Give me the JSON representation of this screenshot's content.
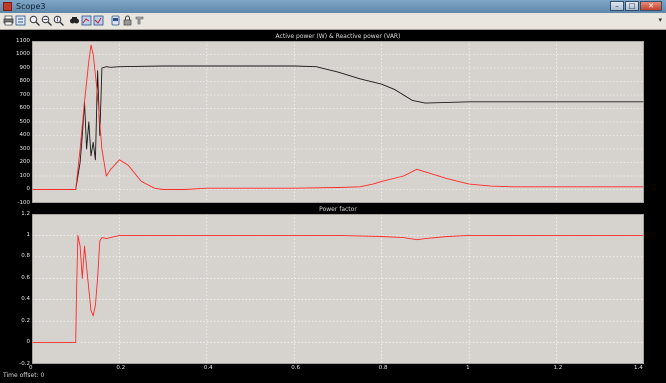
{
  "window": {
    "title": "Scope3",
    "minimize_glyph": "–",
    "maximize_glyph": "□",
    "close_glyph": "✕"
  },
  "toolbar": {
    "icons": [
      "print-icon",
      "parameters-icon",
      "zoom-in-icon",
      "zoom-x-icon",
      "zoom-y-icon",
      "autoscale-icon",
      "save-axes-icon",
      "restore-axes-icon",
      "floating-scope-icon",
      "lock-axes-icon",
      "signal-selector-icon"
    ]
  },
  "status": {
    "text": "Time offset:  0"
  },
  "colors": {
    "background": "#d6d3ce",
    "grid": "#ffffff",
    "active": "#1a1a1a",
    "reactive": "#ff2a2a"
  },
  "chart_data": [
    {
      "type": "line",
      "title": "Active power (W) & Reactive power (VAR)",
      "ylim": [
        -100,
        1100
      ],
      "xlim": [
        0,
        1.4
      ],
      "yticks": [
        "1100",
        "1000",
        "900",
        "800",
        "700",
        "600",
        "500",
        "400",
        "300",
        "200",
        "100",
        "0",
        "-100"
      ],
      "xticks": [],
      "grid": true,
      "series": [
        {
          "color": "#1a1a1a",
          "x": [
            0,
            0.1,
            0.11,
            0.115,
            0.12,
            0.125,
            0.13,
            0.135,
            0.14,
            0.145,
            0.15,
            0.155,
            0.16,
            0.17,
            0.18,
            0.2,
            0.3,
            0.5,
            0.6,
            0.65,
            0.7,
            0.75,
            0.8,
            0.83,
            0.85,
            0.87,
            0.9,
            0.95,
            1.0,
            1.1,
            1.4
          ],
          "y": [
            0,
            0,
            200,
            400,
            650,
            300,
            500,
            250,
            350,
            220,
            880,
            400,
            900,
            910,
            905,
            910,
            915,
            915,
            915,
            910,
            870,
            820,
            780,
            740,
            700,
            660,
            640,
            645,
            650,
            650,
            650
          ]
        },
        {
          "color": "#ff2a2a",
          "x": [
            0,
            0.1,
            0.11,
            0.12,
            0.13,
            0.135,
            0.14,
            0.15,
            0.16,
            0.17,
            0.18,
            0.2,
            0.22,
            0.25,
            0.28,
            0.3,
            0.35,
            0.4,
            0.5,
            0.6,
            0.7,
            0.75,
            0.78,
            0.8,
            0.85,
            0.88,
            0.9,
            0.95,
            1.0,
            1.05,
            1.1,
            1.2,
            1.4
          ],
          "y": [
            0,
            0,
            300,
            650,
            950,
            1070,
            1000,
            700,
            300,
            100,
            150,
            220,
            180,
            60,
            10,
            0,
            0,
            10,
            10,
            10,
            15,
            20,
            40,
            60,
            100,
            150,
            130,
            80,
            40,
            25,
            20,
            20,
            20
          ]
        }
      ]
    },
    {
      "type": "line",
      "title": "Power factor",
      "ylim": [
        -0.2,
        1.2
      ],
      "xlim": [
        0,
        1.4
      ],
      "yticks": [
        "1.2",
        "1",
        "0.8",
        "0.6",
        "0.4",
        "0.2",
        "0",
        "-0.2"
      ],
      "xticks": [
        "0",
        "0.2",
        "0.4",
        "0.6",
        "0.8",
        "1",
        "1.2",
        "1.4"
      ],
      "grid": true,
      "series": [
        {
          "color": "#ff2a2a",
          "x": [
            0,
            0.1,
            0.102,
            0.105,
            0.11,
            0.115,
            0.12,
            0.13,
            0.135,
            0.14,
            0.145,
            0.15,
            0.155,
            0.16,
            0.17,
            0.2,
            0.3,
            0.5,
            0.7,
            0.8,
            0.85,
            0.88,
            0.9,
            0.95,
            1.0,
            1.1,
            1.4
          ],
          "y": [
            0,
            0,
            0.5,
            1.0,
            0.9,
            0.6,
            0.9,
            0.5,
            0.3,
            0.25,
            0.35,
            0.6,
            0.95,
            0.98,
            0.97,
            1.0,
            1.0,
            1.0,
            1.0,
            0.99,
            0.98,
            0.96,
            0.97,
            0.99,
            1.0,
            1.0,
            1.0
          ]
        }
      ]
    }
  ]
}
